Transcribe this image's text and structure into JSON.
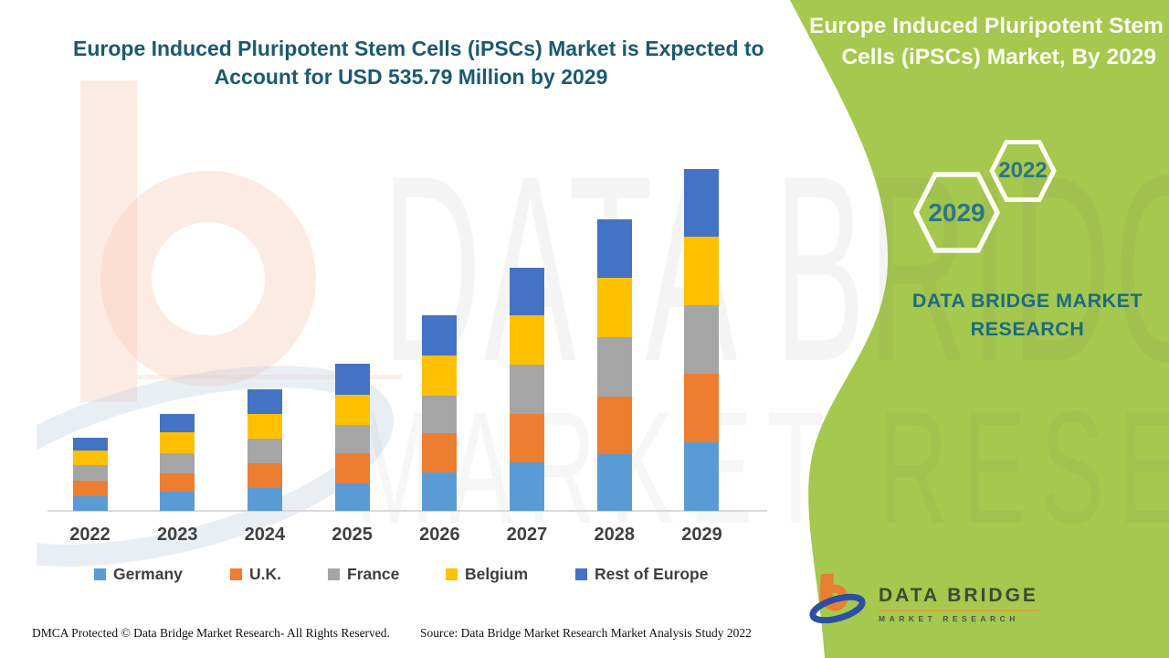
{
  "title": {
    "lines": [
      "Europe Induced Pluripotent Stem Cells (iPSCs) Market is Expected to",
      "Account for USD 535.79 Million by 2029"
    ]
  },
  "side_panel": {
    "heading_lines": [
      "Europe Induced Pluripotent Stem",
      "Cells (iPSCs) Market, By 2029"
    ],
    "hexagons": [
      {
        "label": "2029"
      },
      {
        "label": "2022"
      }
    ],
    "brand_lines": [
      "DATA BRIDGE MARKET",
      "RESEARCH"
    ]
  },
  "chart_data": {
    "type": "bar",
    "stacked": true,
    "values_estimated": true,
    "unit": "USD Million",
    "categories": [
      "2022",
      "2023",
      "2024",
      "2025",
      "2026",
      "2027",
      "2028",
      "2029"
    ],
    "series": [
      {
        "name": "Germany",
        "color": "#5B9BD5",
        "values": [
          22.9,
          30.1,
          35.8,
          43.0,
          60.2,
          75.9,
          88.8,
          107.4
        ]
      },
      {
        "name": "U.K.",
        "color": "#ED7D31",
        "values": [
          24.4,
          28.7,
          38.7,
          47.3,
          61.6,
          76.6,
          90.3,
          107.4
        ]
      },
      {
        "name": "France",
        "color": "#A5A5A5",
        "values": [
          24.4,
          31.5,
          38.7,
          44.4,
          58.7,
          77.4,
          93.1,
          107.4
        ]
      },
      {
        "name": "Belgium",
        "color": "#FFC000",
        "values": [
          22.9,
          33.0,
          38.7,
          47.3,
          63.0,
          76.6,
          93.1,
          107.4
        ]
      },
      {
        "name": "Rest of Europe",
        "color": "#4472C4",
        "values": [
          20.1,
          28.7,
          38.7,
          48.7,
          63.0,
          74.5,
          91.7,
          106.2
        ]
      }
    ],
    "total_2029": 535.79,
    "ylim": [
      0,
      560
    ],
    "grid": false,
    "value_axis_visible": false,
    "legend_position": "bottom"
  },
  "watermark": {
    "line1": "DATA BRIDGE",
    "line2": "MARKET RESEARCH"
  },
  "logo": {
    "line1": "DATA BRIDGE",
    "line2": "MARKET RESEARCH"
  },
  "footer": {
    "dmca": "DMCA Protected © Data Bridge Market Research- All Rights Reserved.",
    "source": "Source: Data Bridge Market Research Market Analysis Study 2022"
  },
  "colors": {
    "title_text": "#1B5972",
    "panel_green": "#A5C84E",
    "panel_heading_text": "#FAFCF2",
    "hexagon_number_text": "#2D7486",
    "brand_text_on_green": "#1D6B80",
    "axis_label_text": "#404040",
    "legend_label_text": "#3F3F3F",
    "logo_orange": "#E97F31",
    "logo_blue": "#2B4FA2"
  }
}
